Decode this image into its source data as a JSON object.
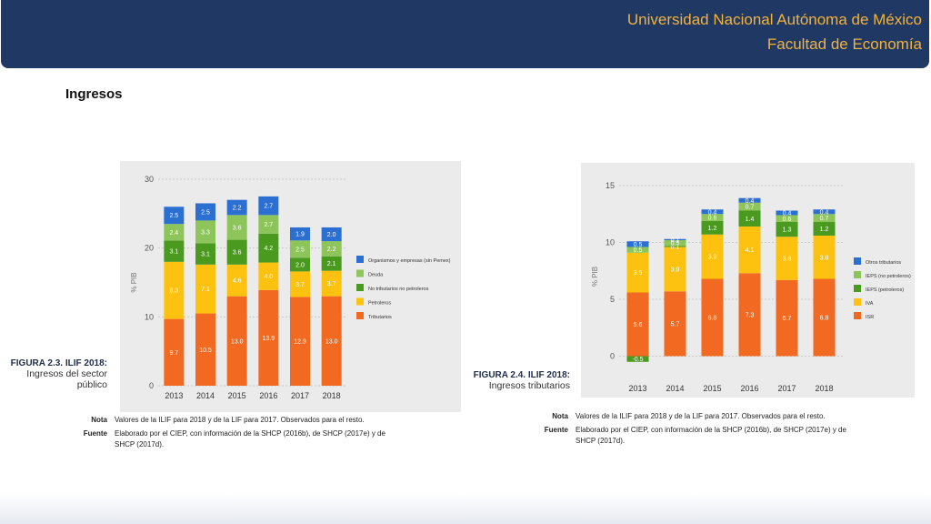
{
  "header": {
    "line1": "Universidad Nacional Autónoma de México",
    "line2": "Facultad de Economía"
  },
  "page_title": "Ingresos",
  "figure_left": {
    "label": "FIGURA 2.3. ILIF 2018:",
    "caption_line1": "Ingresos del sector",
    "caption_line2": "público",
    "nota_label": "Nota",
    "nota_text": "Valores de la ILIF para 2018 y de la LIF para 2017. Observados para el resto.",
    "fuente_label": "Fuente",
    "fuente_text": "Elaborado por el CIEP, con información de la SHCP (2016b), de SHCP (2017e) y de SHCP (2017d)."
  },
  "figure_right": {
    "label": "FIGURA 2.4. ILIF 2018:",
    "caption_line1": "Ingresos tributarios",
    "nota_label": "Nota",
    "nota_text": "Valores de la ILIF para 2018 y de la LIF para 2017. Observados para el resto.",
    "fuente_label": "Fuente",
    "fuente_text": "Elaborado por el CIEP, con información de la SHCP (2016b), de SHCP (2017e) y de SHCP (2017d)."
  },
  "chart_data": [
    {
      "type": "bar",
      "stacked": true,
      "categories": [
        "2013",
        "2014",
        "2015",
        "2016",
        "2017",
        "2018"
      ],
      "ylabel": "% PIB",
      "ylim": [
        0,
        30
      ],
      "yticks": [
        0,
        10,
        20,
        30
      ],
      "legend_placement": "right",
      "series": [
        {
          "name": "Tributarios",
          "color": "#f26a21",
          "values": [
            9.7,
            10.5,
            13.0,
            13.9,
            12.9,
            13.0
          ]
        },
        {
          "name": "Petroleros",
          "color": "#fdc10f",
          "values": [
            8.3,
            7.1,
            4.6,
            4.0,
            3.7,
            3.7
          ]
        },
        {
          "name": "No tributarios no petroleros",
          "color": "#4a9a1f",
          "values": [
            3.1,
            3.1,
            3.6,
            4.2,
            2.0,
            2.1
          ]
        },
        {
          "name": "Deuda",
          "color": "#8dc55a",
          "values": [
            2.4,
            3.3,
            3.6,
            2.7,
            2.5,
            2.2
          ]
        },
        {
          "name": "Organismos y empresas (sin Pemex)",
          "color": "#2a6fd1",
          "values": [
            2.5,
            2.5,
            2.2,
            2.7,
            1.9,
            2.0
          ]
        }
      ]
    },
    {
      "type": "bar",
      "stacked": true,
      "categories": [
        "2013",
        "2014",
        "2015",
        "2016",
        "2017",
        "2018"
      ],
      "ylabel": "% PIB",
      "ylim": [
        -1,
        15
      ],
      "yticks": [
        0,
        5,
        10,
        15
      ],
      "legend_placement": "right",
      "series": [
        {
          "name": "ISR",
          "color": "#f26a21",
          "values": [
            5.6,
            5.7,
            6.8,
            7.3,
            6.7,
            6.8
          ]
        },
        {
          "name": "IVA",
          "color": "#fdc10f",
          "values": [
            3.5,
            3.9,
            3.9,
            4.1,
            3.8,
            3.8
          ]
        },
        {
          "name": "IEPS (petroleros)",
          "color": "#4a9a1f",
          "values": [
            -0.5,
            0.1,
            1.2,
            1.4,
            1.3,
            1.2
          ]
        },
        {
          "name": "IEPS (no petroleros)",
          "color": "#8dc55a",
          "values": [
            0.5,
            0.5,
            0.6,
            0.7,
            0.6,
            0.7
          ]
        },
        {
          "name": "Otros tributarios",
          "color": "#2a6fd1",
          "values": [
            0.5,
            0.1,
            0.4,
            0.4,
            0.4,
            0.4
          ]
        }
      ]
    }
  ]
}
